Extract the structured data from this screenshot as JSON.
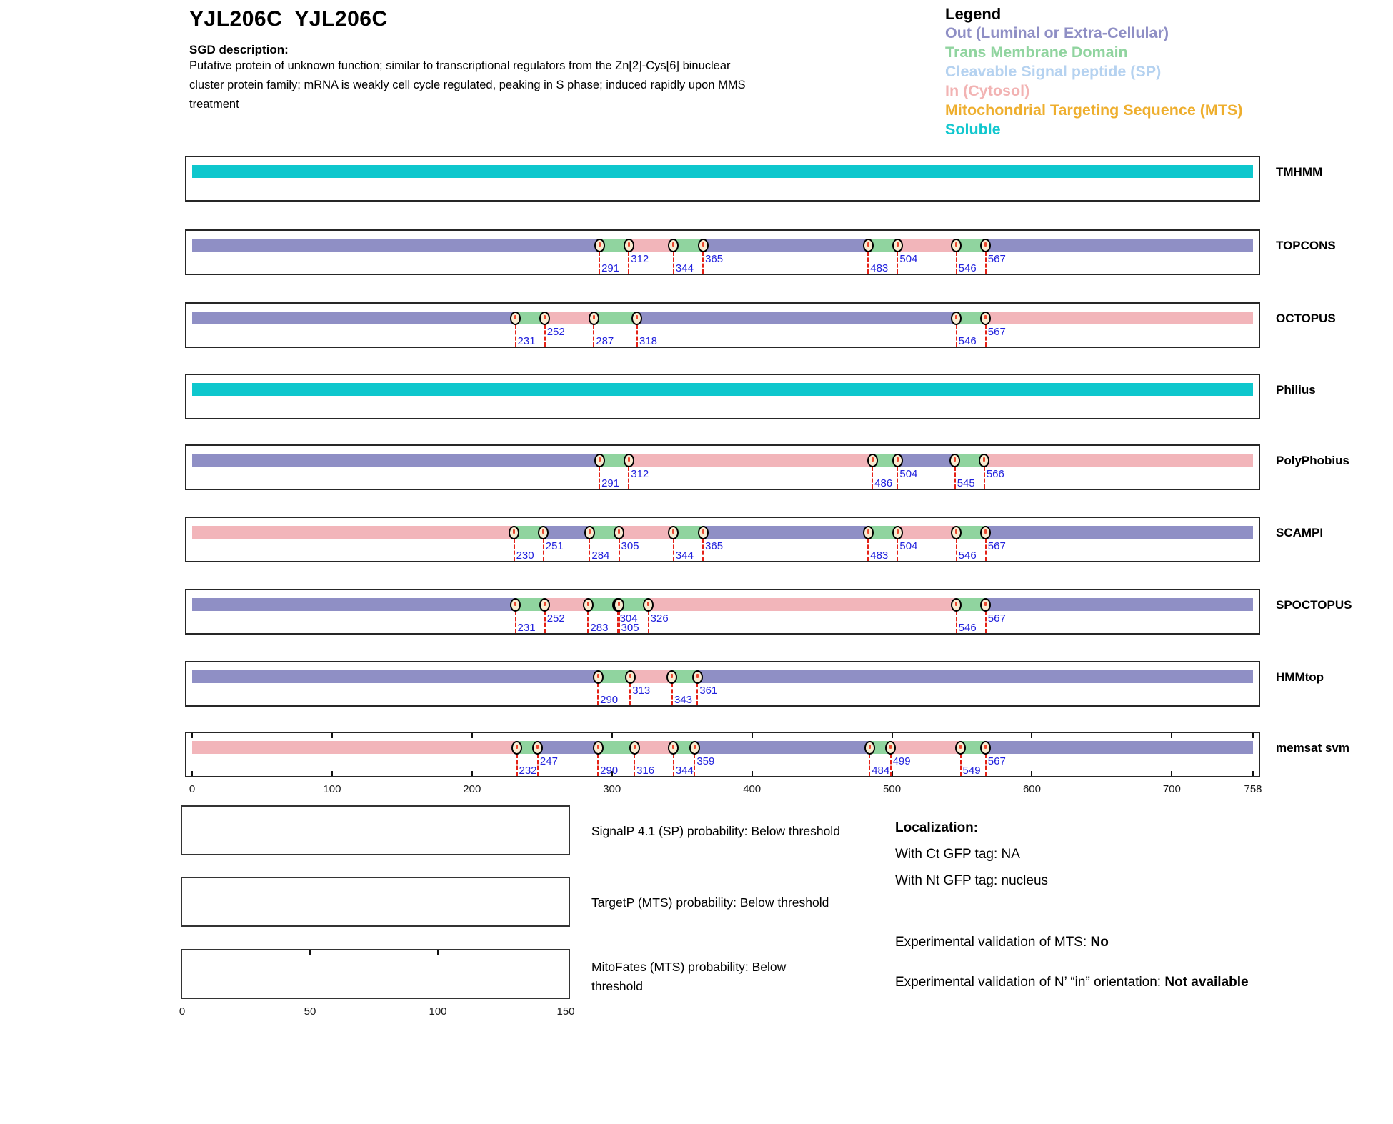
{
  "header": {
    "title": "YJL206C  YJL206C",
    "sgd_heading": "SGD description:",
    "sgd_description_lines": [
      "Putative protein of unknown function; similar to transcriptional regulators from the Zn[2]-Cys[6] binuclear",
      "cluster protein family; mRNA is weakly cell cycle regulated, peaking in S phase; induced rapidly upon MMS",
      "treatment"
    ]
  },
  "legend": {
    "title": "Legend",
    "items": [
      {
        "label": "Out (Luminal or Extra-Cellular)",
        "color": "#8f8fc5"
      },
      {
        "label": "Trans Membrane Domain",
        "color": "#90d49f"
      },
      {
        "label": "Cleavable Signal peptide (SP)",
        "color": "#b5d2f0"
      },
      {
        "label": "In (Cytosol)",
        "color": "#f2b3b3"
      },
      {
        "label": "Mitochondrial Targeting Sequence (MTS)",
        "color": "#eeae2d"
      },
      {
        "label": "Soluble",
        "color": "#12c7ce"
      }
    ]
  },
  "colors": {
    "out": "#8f8fc5",
    "tm": "#90d49f",
    "in": "#f2b5ba",
    "soluble": "#0ec7cd",
    "marker_fill": "#f8ecd2",
    "dash_red": "#e42116",
    "number_blue": "#2222dd"
  },
  "protein": {
    "length": 758,
    "axis_ticks": [
      0,
      100,
      200,
      300,
      400,
      500,
      600,
      700,
      758
    ]
  },
  "tracks": [
    {
      "name": "TMHMM",
      "segments": [
        {
          "type": "soluble",
          "start": 0,
          "end": 758
        }
      ],
      "markers": [],
      "bar_ticks": false
    },
    {
      "name": "TOPCONS",
      "segments": [
        {
          "type": "out",
          "start": 0,
          "end": 291
        },
        {
          "type": "tm",
          "start": 291,
          "end": 312
        },
        {
          "type": "in",
          "start": 312,
          "end": 344
        },
        {
          "type": "tm",
          "start": 344,
          "end": 365
        },
        {
          "type": "out",
          "start": 365,
          "end": 483
        },
        {
          "type": "tm",
          "start": 483,
          "end": 504
        },
        {
          "type": "in",
          "start": 504,
          "end": 546
        },
        {
          "type": "tm",
          "start": 546,
          "end": 567
        },
        {
          "type": "out",
          "start": 567,
          "end": 758
        }
      ],
      "markers": [
        {
          "pos": 291,
          "level": "low"
        },
        {
          "pos": 312,
          "level": "high"
        },
        {
          "pos": 344,
          "level": "low"
        },
        {
          "pos": 365,
          "level": "high"
        },
        {
          "pos": 483,
          "level": "low"
        },
        {
          "pos": 504,
          "level": "high"
        },
        {
          "pos": 546,
          "level": "low"
        },
        {
          "pos": 567,
          "level": "high"
        }
      ],
      "bar_ticks": false
    },
    {
      "name": "OCTOPUS",
      "segments": [
        {
          "type": "out",
          "start": 0,
          "end": 231
        },
        {
          "type": "tm",
          "start": 231,
          "end": 252
        },
        {
          "type": "in",
          "start": 252,
          "end": 287
        },
        {
          "type": "tm",
          "start": 287,
          "end": 318
        },
        {
          "type": "out",
          "start": 318,
          "end": 546
        },
        {
          "type": "tm",
          "start": 546,
          "end": 567
        },
        {
          "type": "in",
          "start": 567,
          "end": 758
        }
      ],
      "markers": [
        {
          "pos": 231,
          "level": "low"
        },
        {
          "pos": 252,
          "level": "high"
        },
        {
          "pos": 287,
          "level": "low"
        },
        {
          "pos": 318,
          "level": "low"
        },
        {
          "pos": 546,
          "level": "low"
        },
        {
          "pos": 567,
          "level": "high"
        }
      ],
      "bar_ticks": false
    },
    {
      "name": "Philius",
      "segments": [
        {
          "type": "soluble",
          "start": 0,
          "end": 758
        }
      ],
      "markers": [],
      "bar_ticks": false
    },
    {
      "name": "PolyPhobius",
      "segments": [
        {
          "type": "out",
          "start": 0,
          "end": 291
        },
        {
          "type": "tm",
          "start": 291,
          "end": 312
        },
        {
          "type": "in",
          "start": 312,
          "end": 486
        },
        {
          "type": "tm",
          "start": 486,
          "end": 504
        },
        {
          "type": "out",
          "start": 504,
          "end": 545
        },
        {
          "type": "tm",
          "start": 545,
          "end": 566
        },
        {
          "type": "in",
          "start": 566,
          "end": 758
        }
      ],
      "markers": [
        {
          "pos": 291,
          "level": "low"
        },
        {
          "pos": 312,
          "level": "high"
        },
        {
          "pos": 486,
          "level": "low"
        },
        {
          "pos": 504,
          "level": "high"
        },
        {
          "pos": 545,
          "level": "low"
        },
        {
          "pos": 566,
          "level": "high"
        }
      ],
      "bar_ticks": false
    },
    {
      "name": "SCAMPI",
      "segments": [
        {
          "type": "in",
          "start": 0,
          "end": 230
        },
        {
          "type": "tm",
          "start": 230,
          "end": 251
        },
        {
          "type": "out",
          "start": 251,
          "end": 284
        },
        {
          "type": "tm",
          "start": 284,
          "end": 305
        },
        {
          "type": "in",
          "start": 305,
          "end": 344
        },
        {
          "type": "tm",
          "start": 344,
          "end": 365
        },
        {
          "type": "out",
          "start": 365,
          "end": 483
        },
        {
          "type": "tm",
          "start": 483,
          "end": 504
        },
        {
          "type": "in",
          "start": 504,
          "end": 546
        },
        {
          "type": "tm",
          "start": 546,
          "end": 567
        },
        {
          "type": "out",
          "start": 567,
          "end": 758
        }
      ],
      "markers": [
        {
          "pos": 230,
          "level": "low"
        },
        {
          "pos": 251,
          "level": "high"
        },
        {
          "pos": 284,
          "level": "low"
        },
        {
          "pos": 305,
          "level": "high"
        },
        {
          "pos": 344,
          "level": "low"
        },
        {
          "pos": 365,
          "level": "high"
        },
        {
          "pos": 483,
          "level": "low"
        },
        {
          "pos": 504,
          "level": "high"
        },
        {
          "pos": 546,
          "level": "low"
        },
        {
          "pos": 567,
          "level": "high"
        }
      ],
      "bar_ticks": false
    },
    {
      "name": "SPOCTOPUS",
      "segments": [
        {
          "type": "out",
          "start": 0,
          "end": 231
        },
        {
          "type": "tm",
          "start": 231,
          "end": 252
        },
        {
          "type": "in",
          "start": 252,
          "end": 283
        },
        {
          "type": "tm",
          "start": 283,
          "end": 304
        },
        {
          "type": "out",
          "start": 304,
          "end": 305
        },
        {
          "type": "tm",
          "start": 305,
          "end": 326
        },
        {
          "type": "in",
          "start": 326,
          "end": 546
        },
        {
          "type": "tm",
          "start": 546,
          "end": 567
        },
        {
          "type": "out",
          "start": 567,
          "end": 758
        }
      ],
      "markers": [
        {
          "pos": 231,
          "level": "low"
        },
        {
          "pos": 252,
          "level": "high"
        },
        {
          "pos": 283,
          "level": "low"
        },
        {
          "pos": 304,
          "level": "high"
        },
        {
          "pos": 305,
          "level": "low"
        },
        {
          "pos": 326,
          "level": "high"
        },
        {
          "pos": 546,
          "level": "low"
        },
        {
          "pos": 567,
          "level": "high"
        }
      ],
      "bar_ticks": false
    },
    {
      "name": "HMMtop",
      "segments": [
        {
          "type": "out",
          "start": 0,
          "end": 290
        },
        {
          "type": "tm",
          "start": 290,
          "end": 313
        },
        {
          "type": "in",
          "start": 313,
          "end": 343
        },
        {
          "type": "tm",
          "start": 343,
          "end": 361
        },
        {
          "type": "out",
          "start": 361,
          "end": 758
        }
      ],
      "markers": [
        {
          "pos": 290,
          "level": "low"
        },
        {
          "pos": 313,
          "level": "high"
        },
        {
          "pos": 343,
          "level": "low"
        },
        {
          "pos": 361,
          "level": "high"
        }
      ],
      "bar_ticks": false
    },
    {
      "name": "memsat svm",
      "segments": [
        {
          "type": "in",
          "start": 0,
          "end": 232
        },
        {
          "type": "tm",
          "start": 232,
          "end": 247
        },
        {
          "type": "out",
          "start": 247,
          "end": 290
        },
        {
          "type": "tm",
          "start": 290,
          "end": 316
        },
        {
          "type": "in",
          "start": 316,
          "end": 344
        },
        {
          "type": "tm",
          "start": 344,
          "end": 359
        },
        {
          "type": "out",
          "start": 359,
          "end": 484
        },
        {
          "type": "tm",
          "start": 484,
          "end": 499
        },
        {
          "type": "in",
          "start": 499,
          "end": 549
        },
        {
          "type": "tm",
          "start": 549,
          "end": 567
        },
        {
          "type": "out",
          "start": 567,
          "end": 758
        }
      ],
      "markers": [
        {
          "pos": 232,
          "level": "low"
        },
        {
          "pos": 247,
          "level": "high"
        },
        {
          "pos": 290,
          "level": "low"
        },
        {
          "pos": 316,
          "level": "low"
        },
        {
          "pos": 344,
          "level": "low"
        },
        {
          "pos": 359,
          "level": "high"
        },
        {
          "pos": 484,
          "level": "low"
        },
        {
          "pos": 499,
          "level": "high"
        },
        {
          "pos": 549,
          "level": "low"
        },
        {
          "pos": 567,
          "level": "high"
        }
      ],
      "bar_ticks": true
    }
  ],
  "probability_plots": [
    {
      "label": "SignalP 4.1 (SP) probability: Below threshold"
    },
    {
      "label": "TargetP (MTS) probability: Below threshold"
    },
    {
      "label": "MitoFates (MTS) probability: Below threshold",
      "axis_ticks": [
        0,
        50,
        100,
        150
      ],
      "axis_max": 150
    }
  ],
  "localization": {
    "heading": "Localization:",
    "ct_line": "With Ct GFP tag: NA",
    "nt_line": "With Nt GFP tag: nucleus",
    "mts_label": "Experimental validation of MTS: ",
    "mts_value": "No",
    "orientation_label": "Experimental validation of N’ “in” orientation: ",
    "orientation_value": "Not available"
  }
}
